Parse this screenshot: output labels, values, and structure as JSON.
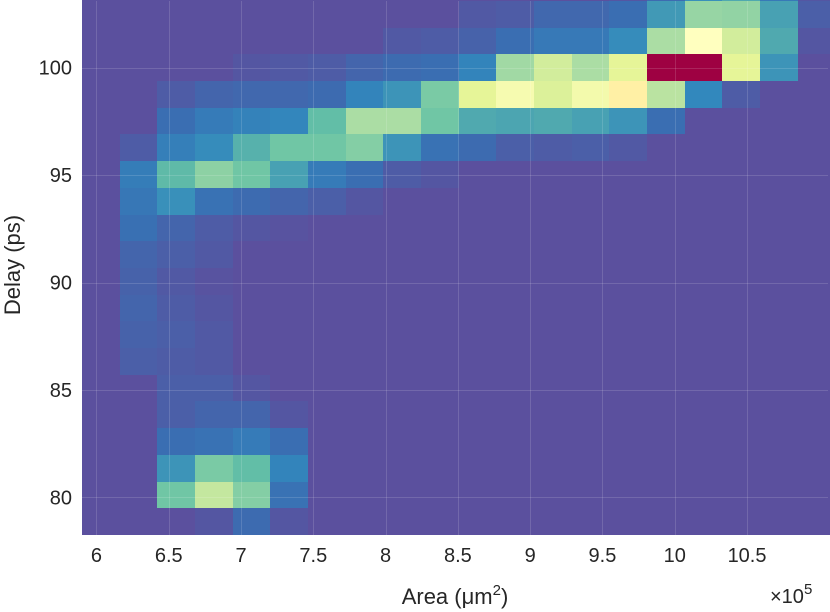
{
  "chart_data": {
    "type": "heatmap",
    "title": "",
    "xlabel_prefix": "Area (",
    "xlabel_unit": "μm",
    "xlabel_sup": "2",
    "xlabel_suffix": ")",
    "ylabel": "Delay (ps)",
    "x_exponent_base": "×10",
    "x_exponent_power": "5",
    "x_scale": 100000,
    "xlim": [
      5.9,
      11.06
    ],
    "ylim": [
      78.25,
      103.1
    ],
    "grid": true,
    "x_ticks": [
      6,
      6.5,
      7,
      7.5,
      8,
      8.5,
      9,
      9.5,
      10,
      10.5
    ],
    "x_tick_labels": [
      "6",
      "6.5",
      "7",
      "7.5",
      "8",
      "8.5",
      "9",
      "9.5",
      "10",
      "10.5"
    ],
    "y_ticks": [
      80,
      85,
      90,
      95,
      100
    ],
    "y_tick_labels": [
      "80",
      "85",
      "90",
      "95",
      "100"
    ],
    "x_bin_start": 5.9,
    "x_bin_width": 0.2606,
    "y_bin_start": 78.25,
    "y_bin_width": 1.2425,
    "colormap": "spectral_r",
    "value_range": [
      0,
      1
    ],
    "background_color": "#5b509e",
    "counts": [
      [
        0,
        0,
        0,
        0.02,
        0.09,
        0.02,
        0,
        0,
        0,
        0,
        0,
        0,
        0,
        0,
        0,
        0,
        0,
        0,
        0,
        0
      ],
      [
        0,
        0,
        0.38,
        0.55,
        0.42,
        0.12,
        0,
        0,
        0,
        0,
        0,
        0,
        0,
        0,
        0,
        0,
        0,
        0,
        0,
        0
      ],
      [
        0,
        0,
        0.25,
        0.4,
        0.35,
        0.2,
        0,
        0,
        0,
        0,
        0,
        0,
        0,
        0,
        0,
        0,
        0,
        0,
        0,
        0
      ],
      [
        0,
        0,
        0.1,
        0.12,
        0.16,
        0.1,
        0,
        0,
        0,
        0,
        0,
        0,
        0,
        0,
        0,
        0,
        0,
        0,
        0,
        0
      ],
      [
        0,
        0,
        0.05,
        0.07,
        0.07,
        0.02,
        0,
        0,
        0,
        0,
        0,
        0,
        0,
        0,
        0,
        0,
        0,
        0,
        0,
        0
      ],
      [
        0,
        0,
        0.05,
        0.05,
        0.02,
        0,
        0,
        0,
        0,
        0,
        0,
        0,
        0,
        0,
        0,
        0,
        0,
        0,
        0,
        0
      ],
      [
        0,
        0.05,
        0.04,
        0.03,
        0,
        0,
        0,
        0,
        0,
        0,
        0,
        0,
        0,
        0,
        0,
        0,
        0,
        0,
        0,
        0
      ],
      [
        0,
        0.06,
        0.05,
        0.03,
        0,
        0,
        0,
        0,
        0,
        0,
        0,
        0,
        0,
        0,
        0,
        0,
        0,
        0,
        0,
        0
      ],
      [
        0,
        0.07,
        0.04,
        0.02,
        0,
        0,
        0,
        0,
        0,
        0,
        0,
        0,
        0,
        0,
        0,
        0,
        0,
        0,
        0,
        0
      ],
      [
        0,
        0.06,
        0.03,
        0.01,
        0,
        0,
        0,
        0,
        0,
        0,
        0,
        0,
        0,
        0,
        0,
        0,
        0,
        0,
        0,
        0
      ],
      [
        0,
        0.07,
        0.05,
        0.03,
        0,
        0,
        0,
        0,
        0,
        0,
        0,
        0,
        0,
        0,
        0,
        0,
        0,
        0,
        0,
        0
      ],
      [
        0,
        0.11,
        0.07,
        0.04,
        0.02,
        0.01,
        0,
        0,
        0,
        0,
        0,
        0,
        0,
        0,
        0,
        0,
        0,
        0,
        0,
        0
      ],
      [
        0,
        0.14,
        0.24,
        0.12,
        0.09,
        0.07,
        0.05,
        0.02,
        0,
        0,
        0,
        0,
        0,
        0,
        0,
        0,
        0,
        0,
        0,
        0
      ],
      [
        0,
        0.17,
        0.34,
        0.44,
        0.38,
        0.28,
        0.16,
        0.1,
        0.04,
        0.02,
        0,
        0,
        0,
        0,
        0,
        0,
        0,
        0,
        0,
        0
      ],
      [
        0,
        0.04,
        0.18,
        0.23,
        0.32,
        0.38,
        0.38,
        0.42,
        0.25,
        0.12,
        0.09,
        0.05,
        0.04,
        0.05,
        0.03,
        0,
        0,
        0,
        0,
        0
      ],
      [
        0,
        0,
        0.1,
        0.16,
        0.19,
        0.21,
        0.35,
        0.5,
        0.5,
        0.38,
        0.3,
        0.29,
        0.3,
        0.28,
        0.25,
        0.1,
        0,
        0,
        0,
        0
      ],
      [
        0,
        0,
        0.04,
        0.07,
        0.08,
        0.08,
        0.09,
        0.2,
        0.25,
        0.4,
        0.62,
        0.67,
        0.6,
        0.66,
        0.74,
        0.53,
        0.22,
        0.04,
        0,
        0
      ],
      [
        0,
        0,
        0,
        0,
        0.02,
        0.03,
        0.04,
        0.07,
        0.09,
        0.1,
        0.2,
        0.48,
        0.58,
        0.5,
        0.62,
        1.0,
        1.0,
        0.62,
        0.25,
        0
      ],
      [
        0,
        0,
        0,
        0,
        0,
        0,
        0,
        0,
        0.03,
        0.04,
        0.06,
        0.1,
        0.15,
        0.15,
        0.23,
        0.5,
        0.7,
        0.58,
        0.3,
        0.02
      ],
      [
        0,
        0,
        0,
        0,
        0,
        0,
        0,
        0,
        0,
        0,
        0.03,
        0.04,
        0.08,
        0.08,
        0.1,
        0.26,
        0.46,
        0.45,
        0.28,
        0.05
      ],
      [
        0,
        0,
        0,
        0,
        0,
        0,
        0,
        0,
        0,
        0,
        0,
        0,
        0,
        0,
        0.02,
        0.09,
        0.24,
        0.3,
        0.15,
        0.02
      ],
      [
        0,
        0,
        0,
        0,
        0,
        0,
        0,
        0,
        0,
        0,
        0,
        0,
        0,
        0,
        0,
        0.03,
        0.08,
        0.17,
        0.1,
        0.02
      ],
      [
        0,
        0,
        0,
        0,
        0,
        0,
        0,
        0,
        0,
        0,
        0,
        0,
        0,
        0,
        0,
        0,
        0.03,
        0.09,
        0.08,
        0.01
      ]
    ]
  }
}
